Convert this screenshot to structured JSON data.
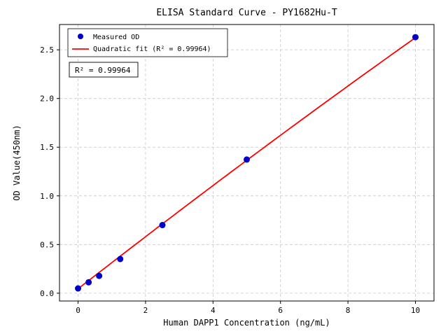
{
  "chart_data": {
    "type": "scatter",
    "title": "ELISA Standard Curve - PY1682Hu-T",
    "xlabel": "Human DAPP1 Concentration (ng/mL)",
    "ylabel": "OD Value(450nm)",
    "xlim": [
      -0.55,
      10.55
    ],
    "ylim": [
      -0.08,
      2.76
    ],
    "xticks": [
      0,
      2,
      4,
      6,
      8,
      10
    ],
    "yticks": [
      0.0,
      0.5,
      1.0,
      1.5,
      2.0,
      2.5
    ],
    "grid": true,
    "grid_color": "#c8c8c8",
    "series": [
      {
        "name": "Measured OD",
        "type": "scatter",
        "color": "#0000cc",
        "x": [
          0,
          0.313,
          0.625,
          1.25,
          2.5,
          5,
          10
        ],
        "y": [
          0.049,
          0.112,
          0.178,
          0.351,
          0.7,
          1.373,
          2.63
        ]
      },
      {
        "name": "Quadratic fit (R² = 0.99964)",
        "type": "line",
        "color": "#ff0000",
        "coeffs": [
          -0.0012,
          0.27,
          0.045
        ],
        "x_range": [
          0,
          10
        ]
      }
    ],
    "legend": {
      "position": "upper-left",
      "items": [
        "Measured OD",
        "Quadratic fit (R² = 0.99964)"
      ]
    },
    "annotation": "R² = 0.99964",
    "r_squared": 0.99964
  }
}
